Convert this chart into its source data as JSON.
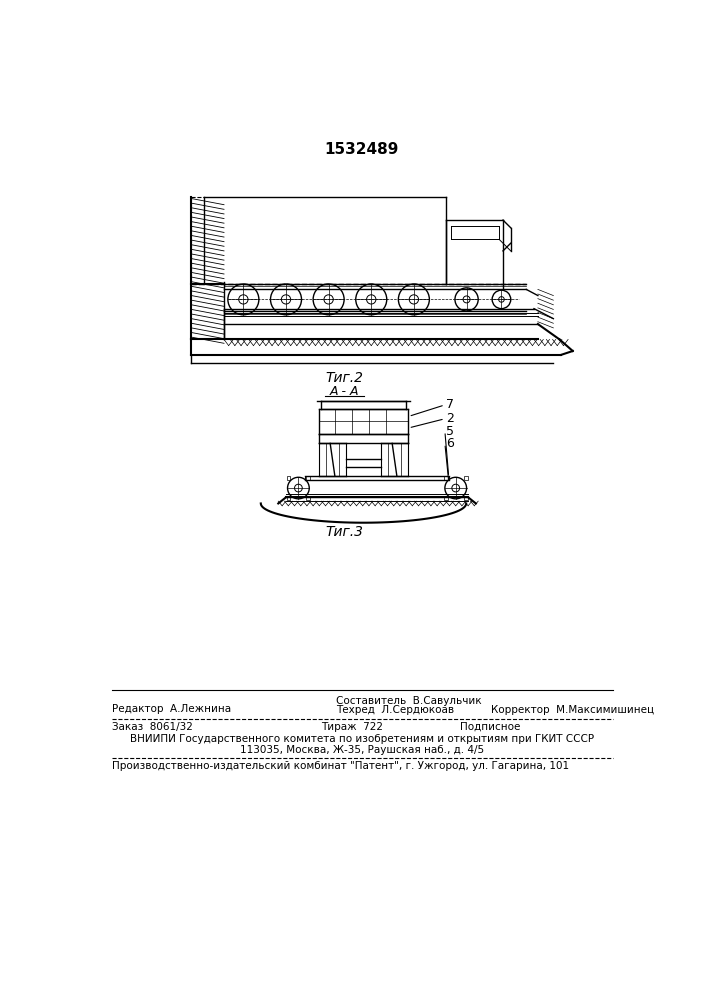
{
  "patent_number": "1532489",
  "fig2_label": "Τиг.2",
  "fig3_label": "Τиг.3",
  "section_label": "А - А",
  "part_labels": [
    "7",
    "2",
    "5",
    "6"
  ],
  "editor_line": "Редактор  А.Лежнина",
  "composer_line": "Составитель  В.Савульчик",
  "techred_line": "Техред  Л.Сердюкоав",
  "corrector_line": "Корректор  М.Максимишинец",
  "order_line": "Заказ  8061/32",
  "tirazh_line": "Тираж  722",
  "podpisnoe_line": "Подписное",
  "vniiipi_line": "ВНИИПИ Государственного комитета по изобретениям и открытиям при ГКИТ СССР",
  "address_line": "113035, Москва, Ж-35, Раушская наб., д. 4/5",
  "production_line": "Производственно-издательский комбинат \"Патент\", г. Ужгород, ул. Гагарина, 101",
  "bg_color": "#ffffff",
  "line_color": "#000000"
}
